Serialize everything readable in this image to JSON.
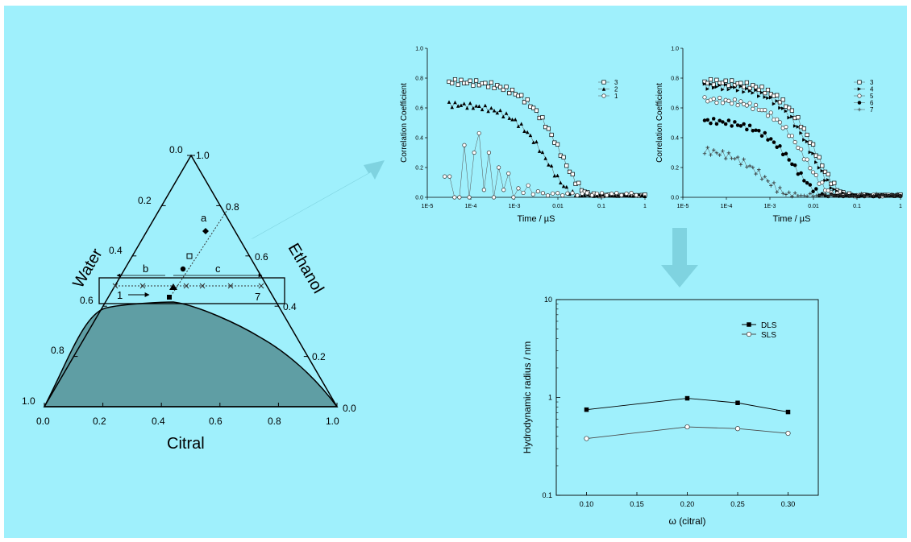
{
  "colors": {
    "background": "#9ff0fc",
    "two_phase_region": "#5f9ea4",
    "arrow": "#7fd3e0",
    "line": "#000000",
    "dls_series": "#000000",
    "sls_series": "#4a4a4a"
  },
  "ternary": {
    "labels": {
      "left": "Water",
      "right": "Ethanol",
      "bottom": "Citral"
    },
    "bottom_ticks": [
      "0.0",
      "0.2",
      "0.4",
      "0.6",
      "0.8",
      "1.0"
    ],
    "left_ticks": [
      "1.0",
      "0.8",
      "0.6",
      "0.4",
      "0.2",
      "0.0"
    ],
    "right_ticks": [
      "0.0",
      "0.2",
      "0.4",
      "0.6",
      "0.8",
      "1.0"
    ],
    "annotations": {
      "a": "a",
      "b": "b",
      "c": "c",
      "start": "1",
      "end": "7"
    }
  },
  "chart_data": [
    {
      "type": "scatter",
      "id": "correlation-left",
      "ylabel": "Correlation Coefficient",
      "xlabel": "Time / µS",
      "xscale": "log",
      "xlim": [
        1e-05,
        1
      ],
      "ylim": [
        0,
        1.0
      ],
      "x_tick_labels": [
        "1E-5",
        "1E-4",
        "1E-3",
        "0.01",
        "0.1",
        "1"
      ],
      "y_tick_labels": [
        "0.0",
        "0.2",
        "0.4",
        "0.6",
        "0.8",
        "1.0"
      ],
      "legend": [
        "3",
        "2",
        "1"
      ],
      "series": [
        {
          "name": "3",
          "marker": "open-square",
          "plateau": 0.78,
          "tau": 0.012,
          "n": 66
        },
        {
          "name": "2",
          "marker": "filled-triangle",
          "plateau": 0.63,
          "tau": 0.006,
          "n": 66
        },
        {
          "name": "1",
          "marker": "open-circle",
          "plateau": 0.0,
          "tau": 0.0,
          "n": 40
        }
      ]
    },
    {
      "type": "scatter",
      "id": "correlation-right",
      "ylabel": "Correlation Coefficient",
      "xlabel": "Time / µS",
      "xscale": "log",
      "xlim": [
        1e-05,
        1
      ],
      "ylim": [
        0,
        1.0
      ],
      "x_tick_labels": [
        "1E-5",
        "1E-4",
        "1E-3",
        "0.01",
        "0.1",
        "1"
      ],
      "y_tick_labels": [
        "0.0",
        "0.2",
        "0.4",
        "0.6",
        "0.8",
        "1.0"
      ],
      "legend": [
        "3",
        "4",
        "5",
        "6",
        "7"
      ],
      "series": [
        {
          "name": "3",
          "marker": "open-square",
          "plateau": 0.78,
          "tau": 0.012,
          "n": 66
        },
        {
          "name": "4",
          "marker": "filled-triangle-right",
          "plateau": 0.75,
          "tau": 0.01,
          "n": 66
        },
        {
          "name": "5",
          "marker": "open-circle",
          "plateau": 0.66,
          "tau": 0.007,
          "n": 66
        },
        {
          "name": "6",
          "marker": "filled-circle",
          "plateau": 0.52,
          "tau": 0.004,
          "n": 66
        },
        {
          "name": "7",
          "marker": "plus",
          "plateau": 0.33,
          "tau": 0.0008,
          "n": 66
        }
      ]
    },
    {
      "type": "line",
      "id": "hydrodynamic-radius",
      "ylabel": "Hydrodynamic radius / nm",
      "xlabel": "ω (citral)",
      "yscale": "log",
      "ylim": [
        0.1,
        10
      ],
      "xlim": [
        0.07,
        0.33
      ],
      "x_tick_labels": [
        "0.10",
        "0.15",
        "0.20",
        "0.25",
        "0.30"
      ],
      "y_tick_labels": [
        "0.1",
        "1",
        "10"
      ],
      "legend": [
        "DLS",
        "SLS"
      ],
      "x": [
        0.1,
        0.2,
        0.25,
        0.3
      ],
      "series": [
        {
          "name": "DLS",
          "marker": "filled-square",
          "values": [
            0.75,
            0.98,
            0.88,
            0.71
          ]
        },
        {
          "name": "SLS",
          "marker": "open-circle",
          "values": [
            0.38,
            0.5,
            0.48,
            0.43
          ]
        }
      ]
    }
  ]
}
